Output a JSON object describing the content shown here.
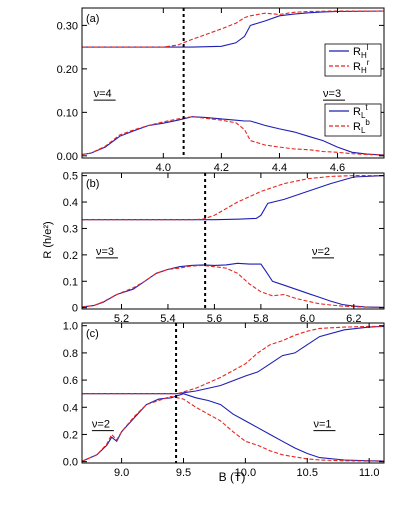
{
  "figure": {
    "ylabel": "R (h/e²)",
    "xlabel": "B (T)"
  },
  "colors": {
    "blue": "#1f1fb4",
    "red": "#e8261f",
    "black": "#000000"
  },
  "chart_data": [
    {
      "type": "line",
      "panel_label": "(a)",
      "xlim": [
        3.72,
        4.76
      ],
      "ylim": [
        -0.005,
        0.34
      ],
      "xticks": [
        4.0,
        4.2,
        4.4,
        4.6
      ],
      "xtick_labels": [
        "4.0",
        "4.2",
        "4.4",
        "4.6"
      ],
      "yticks": [
        0.0,
        0.1,
        0.2,
        0.3
      ],
      "ytick_labels": [
        "0.00",
        "0.10",
        "0.20",
        "0.30"
      ],
      "vline_x": 4.07,
      "annotations": [
        {
          "text": "ν=4",
          "x": 3.76,
          "y": 0.135
        },
        {
          "text": "ν=3",
          "x": 4.55,
          "y": 0.135
        }
      ],
      "legend_hall": [
        {
          "name": "R_H^l",
          "main": "R",
          "sub": "H",
          "sup": "l",
          "color": "#1f1fb4",
          "dash": "solid"
        },
        {
          "name": "R_H^r",
          "main": "R",
          "sub": "H",
          "sup": "r",
          "color": "#e8261f",
          "dash": "dashed"
        }
      ],
      "legend_long": [
        {
          "name": "R_L^t",
          "main": "R",
          "sub": "L",
          "sup": "t",
          "color": "#1f1fb4",
          "dash": "solid"
        },
        {
          "name": "R_L^b",
          "main": "R",
          "sub": "L",
          "sup": "b",
          "color": "#e8261f",
          "dash": "dashed"
        }
      ],
      "series": [
        {
          "color": "#1f1fb4",
          "dash": "solid",
          "x": [
            3.72,
            4.0,
            4.1,
            4.2,
            4.25,
            4.28,
            4.3,
            4.35,
            4.4,
            4.45,
            4.5,
            4.55,
            4.6,
            4.76
          ],
          "y": [
            0.25,
            0.25,
            0.25,
            0.252,
            0.26,
            0.275,
            0.3,
            0.31,
            0.322,
            0.326,
            0.329,
            0.331,
            0.332,
            0.333
          ]
        },
        {
          "color": "#e8261f",
          "dash": "dashed",
          "x": [
            3.72,
            4.0,
            4.05,
            4.1,
            4.15,
            4.2,
            4.25,
            4.28,
            4.3,
            4.35,
            4.4,
            4.45,
            4.5,
            4.6,
            4.76
          ],
          "y": [
            0.25,
            0.25,
            0.255,
            0.268,
            0.28,
            0.292,
            0.305,
            0.318,
            0.322,
            0.328,
            0.325,
            0.33,
            0.332,
            0.333,
            0.333
          ]
        },
        {
          "color": "#1f1fb4",
          "dash": "solid",
          "x": [
            3.72,
            3.75,
            3.8,
            3.85,
            3.9,
            3.95,
            4.0,
            4.05,
            4.1,
            4.15,
            4.2,
            4.25,
            4.28,
            4.3,
            4.35,
            4.4,
            4.45,
            4.5,
            4.55,
            4.6,
            4.65,
            4.7,
            4.76
          ],
          "y": [
            0.003,
            0.006,
            0.02,
            0.045,
            0.058,
            0.07,
            0.075,
            0.082,
            0.09,
            0.088,
            0.085,
            0.082,
            0.08,
            0.08,
            0.07,
            0.062,
            0.055,
            0.045,
            0.035,
            0.02,
            0.008,
            0.004,
            0.002
          ]
        },
        {
          "color": "#e8261f",
          "dash": "dashed",
          "x": [
            3.72,
            3.75,
            3.8,
            3.85,
            3.9,
            3.95,
            4.0,
            4.05,
            4.1,
            4.15,
            4.2,
            4.25,
            4.28,
            4.3,
            4.35,
            4.4,
            4.45,
            4.5,
            4.55,
            4.6,
            4.65,
            4.7,
            4.76
          ],
          "y": [
            0.003,
            0.006,
            0.022,
            0.048,
            0.06,
            0.07,
            0.078,
            0.085,
            0.09,
            0.086,
            0.082,
            0.076,
            0.06,
            0.035,
            0.025,
            0.02,
            0.016,
            0.014,
            0.01,
            0.008,
            0.005,
            0.003,
            0.002
          ]
        }
      ]
    },
    {
      "type": "line",
      "panel_label": "(b)",
      "xlim": [
        5.03,
        6.33
      ],
      "ylim": [
        -0.005,
        0.51
      ],
      "xticks": [
        5.2,
        5.4,
        5.6,
        5.8,
        6.0,
        6.2
      ],
      "xtick_labels": [
        "5.2",
        "5.4",
        "5.6",
        "5.8",
        "6.0",
        "6.2"
      ],
      "yticks": [
        0.0,
        0.1,
        0.2,
        0.3,
        0.4,
        0.5
      ],
      "ytick_labels": [
        "0",
        "0.1",
        "0.2",
        "0.3",
        "0.4",
        "0.5"
      ],
      "vline_x": 5.56,
      "annotations": [
        {
          "text": "ν=3",
          "x": 5.09,
          "y": 0.2
        },
        {
          "text": "ν=2",
          "x": 6.02,
          "y": 0.2
        }
      ],
      "series": [
        {
          "color": "#1f1fb4",
          "dash": "solid",
          "x": [
            5.03,
            5.5,
            5.6,
            5.7,
            5.78,
            5.8,
            5.83,
            5.9,
            6.0,
            6.1,
            6.2,
            6.33
          ],
          "y": [
            0.333,
            0.333,
            0.333,
            0.335,
            0.338,
            0.35,
            0.395,
            0.41,
            0.44,
            0.47,
            0.495,
            0.5
          ]
        },
        {
          "color": "#e8261f",
          "dash": "dashed",
          "x": [
            5.03,
            5.5,
            5.55,
            5.6,
            5.65,
            5.7,
            5.75,
            5.8,
            5.85,
            5.9,
            6.0,
            6.1,
            6.2,
            6.33
          ],
          "y": [
            0.333,
            0.333,
            0.335,
            0.35,
            0.375,
            0.4,
            0.42,
            0.44,
            0.455,
            0.47,
            0.488,
            0.497,
            0.5,
            0.5
          ]
        },
        {
          "color": "#1f1fb4",
          "dash": "solid",
          "x": [
            5.03,
            5.08,
            5.12,
            5.18,
            5.25,
            5.3,
            5.35,
            5.4,
            5.45,
            5.5,
            5.55,
            5.6,
            5.65,
            5.7,
            5.75,
            5.8,
            5.82,
            5.85,
            5.9,
            5.95,
            6.0,
            6.05,
            6.1,
            6.15,
            6.2,
            6.25,
            6.33
          ],
          "y": [
            0.003,
            0.008,
            0.02,
            0.05,
            0.07,
            0.1,
            0.13,
            0.145,
            0.155,
            0.16,
            0.162,
            0.16,
            0.162,
            0.168,
            0.165,
            0.165,
            0.14,
            0.1,
            0.085,
            0.07,
            0.055,
            0.04,
            0.025,
            0.012,
            0.006,
            0.003,
            0.001
          ]
        },
        {
          "color": "#e8261f",
          "dash": "dashed",
          "x": [
            5.03,
            5.08,
            5.12,
            5.18,
            5.25,
            5.3,
            5.35,
            5.4,
            5.45,
            5.5,
            5.55,
            5.6,
            5.65,
            5.7,
            5.75,
            5.8,
            5.85,
            5.9,
            5.95,
            6.0,
            6.05,
            6.1,
            6.15,
            6.2,
            6.25,
            6.33
          ],
          "y": [
            0.003,
            0.008,
            0.022,
            0.05,
            0.075,
            0.1,
            0.13,
            0.145,
            0.15,
            0.158,
            0.16,
            0.155,
            0.15,
            0.13,
            0.09,
            0.06,
            0.045,
            0.05,
            0.035,
            0.025,
            0.015,
            0.01,
            0.006,
            0.004,
            0.002,
            0.001
          ]
        }
      ]
    },
    {
      "type": "line",
      "panel_label": "(c)",
      "xlim": [
        8.68,
        11.12
      ],
      "ylim": [
        -0.01,
        1.02
      ],
      "xticks": [
        9.0,
        9.5,
        10.0,
        10.5,
        11.0
      ],
      "xtick_labels": [
        "9.0",
        "9.5",
        "10.0",
        "10.5",
        "11.0"
      ],
      "yticks": [
        0.0,
        0.2,
        0.4,
        0.6,
        0.8,
        1.0
      ],
      "ytick_labels": [
        "0.0",
        "0.2",
        "0.4",
        "0.6",
        "0.8",
        "1.0"
      ],
      "vline_x": 9.44,
      "annotations": [
        {
          "text": "ν=2",
          "x": 8.76,
          "y": 0.25
        },
        {
          "text": "ν=1",
          "x": 10.55,
          "y": 0.25
        }
      ],
      "series": [
        {
          "color": "#1f1fb4",
          "dash": "solid",
          "x": [
            8.68,
            9.3,
            9.45,
            9.6,
            9.8,
            10.0,
            10.1,
            10.2,
            10.3,
            10.4,
            10.5,
            10.6,
            10.8,
            11.0,
            11.12
          ],
          "y": [
            0.5,
            0.5,
            0.5,
            0.52,
            0.56,
            0.63,
            0.66,
            0.72,
            0.78,
            0.8,
            0.86,
            0.92,
            0.97,
            0.99,
            0.995
          ]
        },
        {
          "color": "#e8261f",
          "dash": "dashed",
          "x": [
            8.68,
            9.3,
            9.45,
            9.6,
            9.8,
            10.0,
            10.1,
            10.2,
            10.3,
            10.4,
            10.5,
            10.6,
            10.8,
            11.0,
            11.12
          ],
          "y": [
            0.5,
            0.5,
            0.5,
            0.54,
            0.62,
            0.72,
            0.8,
            0.86,
            0.89,
            0.93,
            0.96,
            0.98,
            0.99,
            0.995,
            0.995
          ]
        },
        {
          "color": "#1f1fb4",
          "dash": "solid",
          "x": [
            8.68,
            8.8,
            8.88,
            8.92,
            8.96,
            9.0,
            9.1,
            9.2,
            9.3,
            9.4,
            9.5,
            9.6,
            9.7,
            9.8,
            9.9,
            10.0,
            10.1,
            10.2,
            10.3,
            10.4,
            10.5,
            10.6,
            10.8,
            11.0,
            11.12
          ],
          "y": [
            0.003,
            0.05,
            0.12,
            0.18,
            0.15,
            0.22,
            0.32,
            0.42,
            0.46,
            0.47,
            0.5,
            0.47,
            0.45,
            0.42,
            0.35,
            0.3,
            0.25,
            0.2,
            0.15,
            0.1,
            0.06,
            0.03,
            0.012,
            0.006,
            0.005
          ]
        },
        {
          "color": "#e8261f",
          "dash": "dashed",
          "x": [
            8.68,
            8.8,
            8.88,
            8.92,
            8.96,
            9.0,
            9.1,
            9.2,
            9.3,
            9.4,
            9.5,
            9.6,
            9.7,
            9.8,
            9.9,
            10.0,
            10.1,
            10.2,
            10.3,
            10.4,
            10.5,
            10.6,
            10.8,
            11.0,
            11.12
          ],
          "y": [
            0.003,
            0.05,
            0.13,
            0.2,
            0.16,
            0.22,
            0.33,
            0.42,
            0.45,
            0.48,
            0.46,
            0.4,
            0.35,
            0.3,
            0.22,
            0.15,
            0.12,
            0.08,
            0.05,
            0.035,
            0.02,
            0.012,
            0.006,
            0.004,
            0.003
          ]
        }
      ]
    }
  ]
}
